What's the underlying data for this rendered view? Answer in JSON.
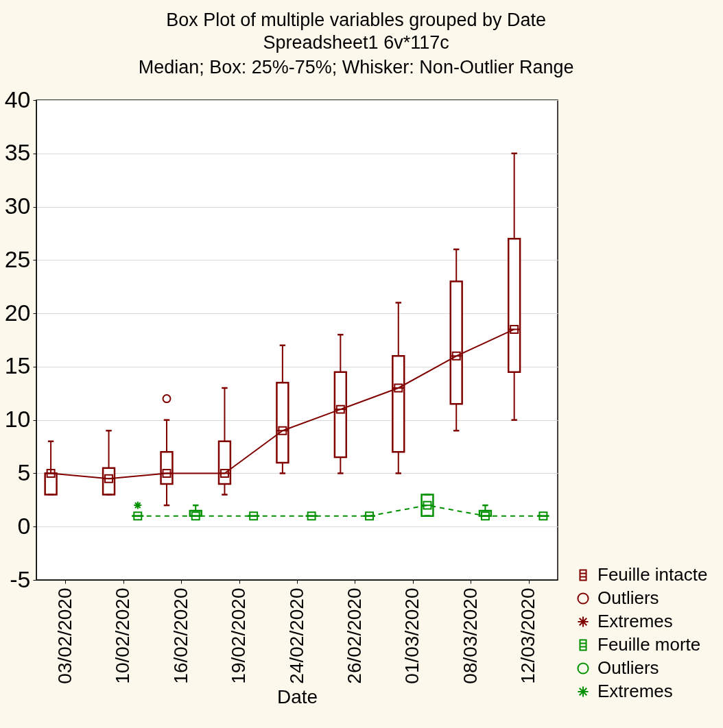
{
  "chart_data": {
    "type": "box",
    "title": "Box Plot of multiple variables grouped by Date",
    "subtitle": "Spreadsheet1 6v*117c",
    "annotations": [
      "Median; Box: 25%-75%; Whisker: Non-Outlier Range"
    ],
    "xlabel": "Date",
    "categories": [
      "03/02/2020",
      "10/02/2020",
      "16/02/2020",
      "19/02/2020",
      "24/02/2020",
      "26/02/2020",
      "01/03/2020",
      "08/03/2020",
      "12/03/2020"
    ],
    "series": [
      {
        "name": "Feuille intacte",
        "type": "box",
        "color": "#800000",
        "boxes": [
          {
            "low": 3,
            "q1": 3,
            "median": 5,
            "q3": 5,
            "high": 8
          },
          {
            "low": 3,
            "q1": 3,
            "median": 4.5,
            "q3": 5.5,
            "high": 9
          },
          {
            "low": 2,
            "q1": 4,
            "median": 5,
            "q3": 7,
            "high": 10
          },
          {
            "low": 3,
            "q1": 4,
            "median": 5,
            "q3": 8,
            "high": 13
          },
          {
            "low": 5,
            "q1": 6,
            "median": 9,
            "q3": 13.5,
            "high": 17
          },
          {
            "low": 5,
            "q1": 6.5,
            "median": 11,
            "q3": 14.5,
            "high": 18
          },
          {
            "low": 5,
            "q1": 7,
            "median": 13,
            "q3": 16,
            "high": 21
          },
          {
            "low": 9,
            "q1": 11.5,
            "median": 16,
            "q3": 23,
            "high": 26
          },
          {
            "low": 10,
            "q1": 14.5,
            "median": 18.5,
            "q3": 27,
            "high": 35
          }
        ]
      },
      {
        "type": "line",
        "color": "#800000",
        "marker": "square",
        "line_style": "solid",
        "x": [
          "03/02/2020",
          "10/02/2020",
          "16/02/2020",
          "19/02/2020",
          "24/02/2020",
          "26/02/2020",
          "01/03/2020",
          "08/03/2020",
          "12/03/2020"
        ],
        "values": [
          5,
          4.5,
          5,
          5,
          9,
          11,
          13,
          16,
          18.5
        ]
      },
      {
        "name": "Outliers",
        "type": "scatter",
        "color": "#800000",
        "marker": "circle",
        "x": [
          "16/02/2020"
        ],
        "values": [
          12
        ]
      },
      {
        "name": "Extremes",
        "type": "scatter",
        "color": "#800000",
        "marker": "cross",
        "values": [
          null,
          null,
          null,
          null,
          null,
          null,
          null,
          null,
          null
        ]
      },
      {
        "name": "Feuille morte",
        "type": "box",
        "color": "#009000",
        "boxes": [
          null,
          {
            "low": 1,
            "q1": 1,
            "median": 1,
            "q3": 1,
            "high": 1
          },
          {
            "low": 1,
            "q1": 1,
            "median": 1,
            "q3": 1.5,
            "high": 2
          },
          {
            "low": 1,
            "q1": 1,
            "median": 1,
            "q3": 1,
            "high": 1
          },
          {
            "low": 1,
            "q1": 1,
            "median": 1,
            "q3": 1,
            "high": 1
          },
          {
            "low": 1,
            "q1": 1,
            "median": 1,
            "q3": 1,
            "high": 1
          },
          {
            "low": 1,
            "q1": 1,
            "median": 2,
            "q3": 3,
            "high": 3
          },
          {
            "low": 1,
            "q1": 1,
            "median": 1,
            "q3": 1.5,
            "high": 2
          },
          {
            "low": 1,
            "q1": 1,
            "median": 1,
            "q3": 1,
            "high": 1
          }
        ]
      },
      {
        "type": "line",
        "color": "#009000",
        "marker": "square",
        "line_style": "dashed",
        "x": [
          "10/02/2020",
          "16/02/2020",
          "19/02/2020",
          "24/02/2020",
          "26/02/2020",
          "01/03/2020",
          "08/03/2020",
          "12/03/2020"
        ],
        "values": [
          1,
          1,
          1,
          1,
          1,
          2,
          1,
          1
        ]
      },
      {
        "name": "Outliers",
        "type": "scatter",
        "color": "#009000",
        "marker": "circle",
        "values": [
          null,
          null,
          null,
          null,
          null,
          null,
          null,
          null,
          null
        ]
      },
      {
        "name": "Extremes",
        "type": "scatter",
        "color": "#009000",
        "marker": "cross",
        "x": [
          "10/02/2020"
        ],
        "values": [
          2
        ]
      }
    ],
    "ylim": [
      -5,
      40
    ],
    "yticks": [
      -5,
      0,
      5,
      10,
      15,
      20,
      25,
      30,
      35,
      40
    ],
    "grid": "y",
    "legend": "bottom right"
  }
}
